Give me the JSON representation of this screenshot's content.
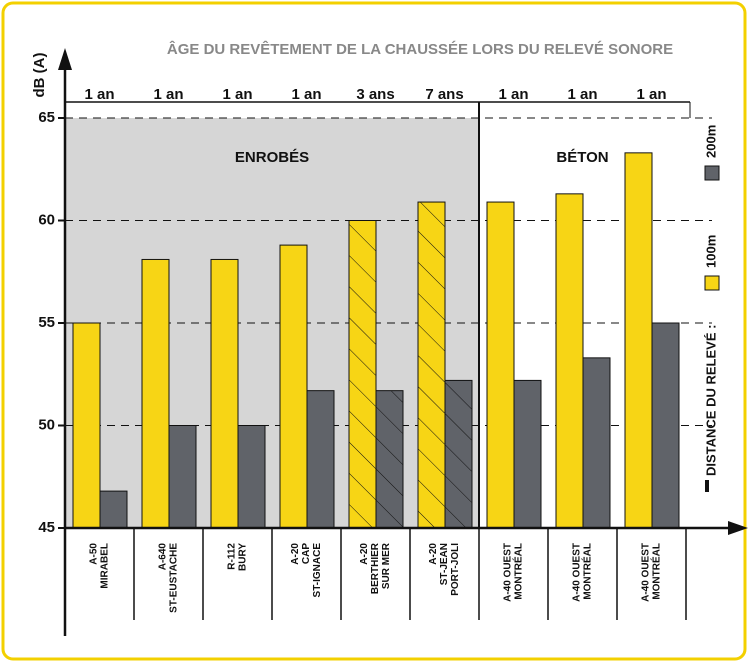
{
  "chart_data": {
    "type": "bar",
    "title": "ÂGE DU REVÊTEMENT DE LA CHAUSSÉE LORS DU RELEVÉ SONORE",
    "y_label": "dB (A)",
    "legend_title": "DISTANCE DU RELEVÉ :",
    "categories": [
      [
        "A-50",
        "MIRABEL"
      ],
      [
        "A-640",
        "ST-EUSTACHE"
      ],
      [
        "R-112",
        "BURY"
      ],
      [
        "A-20",
        "CAP",
        "ST-IGNACE"
      ],
      [
        "A-20",
        "BERTHIER",
        "SUR MER"
      ],
      [
        "A-20",
        "ST-JEAN",
        "PORT-JOLI"
      ],
      [
        "A-40 OUEST",
        "MONTRÉAL"
      ],
      [
        "A-40 OUEST",
        "MONTRÉAL"
      ],
      [
        "A-40 OUEST",
        "MONTRÉAL"
      ]
    ],
    "ages": [
      "1 an",
      "1 an",
      "1 an",
      "1 an",
      "3 ans",
      "7 ans",
      "1 an",
      "1 an",
      "1 an"
    ],
    "hatched": [
      false,
      false,
      false,
      false,
      true,
      true,
      false,
      false,
      false
    ],
    "regions": [
      {
        "label": "ENROBÉS",
        "count": 6,
        "shade": "#d6d6d6"
      },
      {
        "label": "BÉTON",
        "count": 3,
        "shade": "#ffffff"
      }
    ],
    "series": [
      {
        "name": "100m",
        "color": "#f7d515",
        "values": [
          55,
          58.1,
          58.1,
          58.8,
          60,
          60.9,
          60.9,
          61.3,
          63.3
        ]
      },
      {
        "name": "200m",
        "color": "#606369",
        "values": [
          46.8,
          50,
          50,
          51.7,
          51.7,
          52.2,
          52.2,
          53.3,
          55
        ]
      }
    ],
    "ylim": [
      45,
      65
    ],
    "yticks": [
      45,
      50,
      55,
      60,
      65
    ],
    "grid": true
  }
}
